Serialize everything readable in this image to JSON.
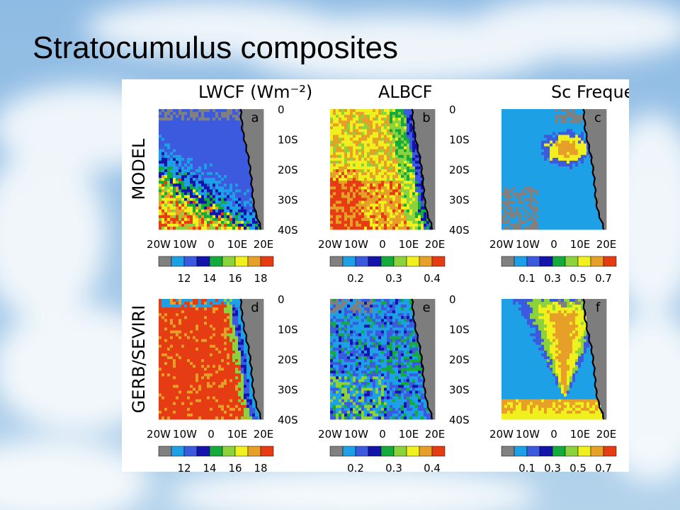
{
  "slide": {
    "title": "Stratocumulus composites",
    "colors": {
      "sky_top": "#7fb2e0",
      "sky_bottom": "#a9cde9",
      "cloud": "#ffffff"
    }
  },
  "figure": {
    "row_labels": [
      "MODEL",
      "GERB/SEVIRI"
    ],
    "columns": [
      {
        "title": "LWCF (Wm⁻²)",
        "colorbar_ticks": [
          "12",
          "14",
          "16",
          "18"
        ]
      },
      {
        "title": "ALBCF",
        "colorbar_ticks": [
          "0.2",
          "0.3",
          "0.4"
        ]
      },
      {
        "title": "Sc Frequency",
        "colorbar_ticks": [
          "0.1",
          "0.3",
          "0.5",
          "0.7"
        ]
      }
    ],
    "panel_letters": [
      "a",
      "b",
      "c",
      "d",
      "e",
      "f"
    ],
    "lat_ticks": [
      "0",
      "10S",
      "20S",
      "30S",
      "40S"
    ],
    "lon_ticks": [
      "20W",
      "10W",
      "0",
      "10E",
      "20E"
    ],
    "colorbar_colors": [
      "#808080",
      "#1ea0e6",
      "#3c5ade",
      "#1414aa",
      "#14aa3c",
      "#8cd23c",
      "#f0f01e",
      "#e6a028",
      "#e63c14"
    ],
    "land_color": "#7d7d7d",
    "coast_color": "#000000",
    "field_descriptions": {
      "a": "Model LWCF: blue in the northeast, yellow-red bands in the southwest",
      "b": "Model ALBCF: yellow-orange widespread with green band near coast",
      "c": "Model Sc frequency: light blue with yellow core off the coast near 15S",
      "d": "Observed LWCF: red/orange dominant, blue strip along coast",
      "e": "Observed ALBCF: blue dominant with scattered green",
      "f": "Observed Sc frequency: yellow-orange triangle core, blue surroundings"
    }
  }
}
